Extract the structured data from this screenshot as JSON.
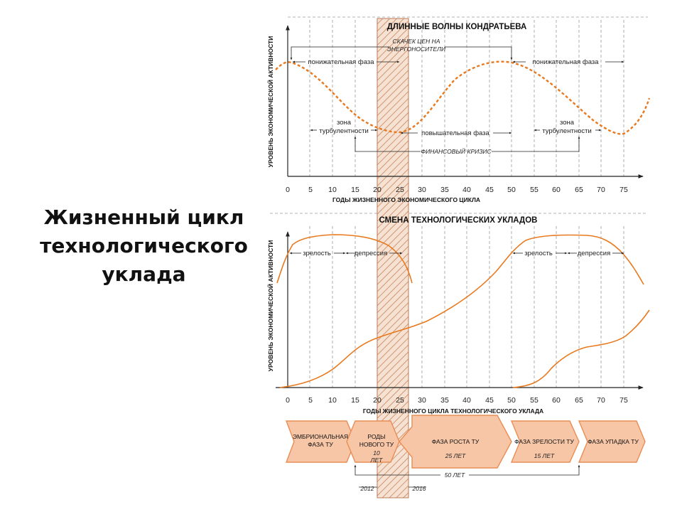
{
  "slide": {
    "title_lines": [
      "Жизненный цикл",
      "технологического",
      "уклада"
    ]
  },
  "chart_top": {
    "title": "ДЛИННЫЕ ВОЛНЫ КОНДРАТЬЕВА",
    "ylabel": "УРОВЕНЬ ЭКОНОМИЧЕСКОЙ АКТИВНОСТИ",
    "xlabel": "ГОДЫ ЖИЗНЕННОГО ЭКОНОМИЧЕСКОГО ЦИКЛА",
    "annotations": {
      "price_jump_1": "СКАЧЕК ЦЕН НА",
      "price_jump_2": "ЭНЕРГОНОСИТЕЛИ",
      "down_phase_1": "понижательная фаза",
      "down_phase_2": "понижательная фаза",
      "turb_1_a": "зона",
      "turb_1_b": "турбулентности",
      "turb_2_a": "зона",
      "turb_2_b": "турбулентности",
      "up_phase": "повышательная фаза",
      "fin_crisis": "ФИНАНСОВЫЙ КРИЗИС"
    }
  },
  "chart_bottom": {
    "title": "СМЕНА ТЕХНОЛОГИЧЕСКИХ УКЛАДОВ",
    "ylabel": "УРОВЕНЬ ЭКОНОМИЧЕСКОЙ АКТИВНОСТИ",
    "xlabel": "ГОДЫ ЖИЗНЕННОГО ЦИКЛА ТЕХНОЛОГИЧЕСКОГО УКЛАДА",
    "annotations": {
      "maturity_1": "зрелость",
      "depression_1": "депрессия",
      "maturity_2": "зрелость",
      "depression_2": "депрессия"
    }
  },
  "x_ticks": [
    "0",
    "5",
    "10",
    "15",
    "20",
    "25",
    "30",
    "35",
    "40",
    "45",
    "50",
    "55",
    "60",
    "65",
    "70",
    "75"
  ],
  "phases": {
    "embryo_1": "ЭМБРИОНАЛЬНАЯ",
    "embryo_2": "ФАЗА ТУ",
    "birth_1": "РОДЫ",
    "birth_2": "НОВОГО ТУ",
    "growth": "ФАЗА РОСТА ТУ",
    "maturity": "ФАЗА ЗРЕЛОСТИ ТУ",
    "decline": "ФАЗА УПАДКА ТУ"
  },
  "durations": {
    "birth_years": "10",
    "birth_unit": "ЛЕТ",
    "growth": "25 ЛЕТ",
    "maturity": "15 ЛЕТ",
    "total": "50 ЛЕТ"
  },
  "years": {
    "start": "2012",
    "end": "2016"
  },
  "colors": {
    "curve": "#e8791e",
    "arrow_fill": "#f7c6a7",
    "arrow_stroke": "#e98d54",
    "hatch": "#c9835c",
    "grid": "#9a9a9a"
  }
}
